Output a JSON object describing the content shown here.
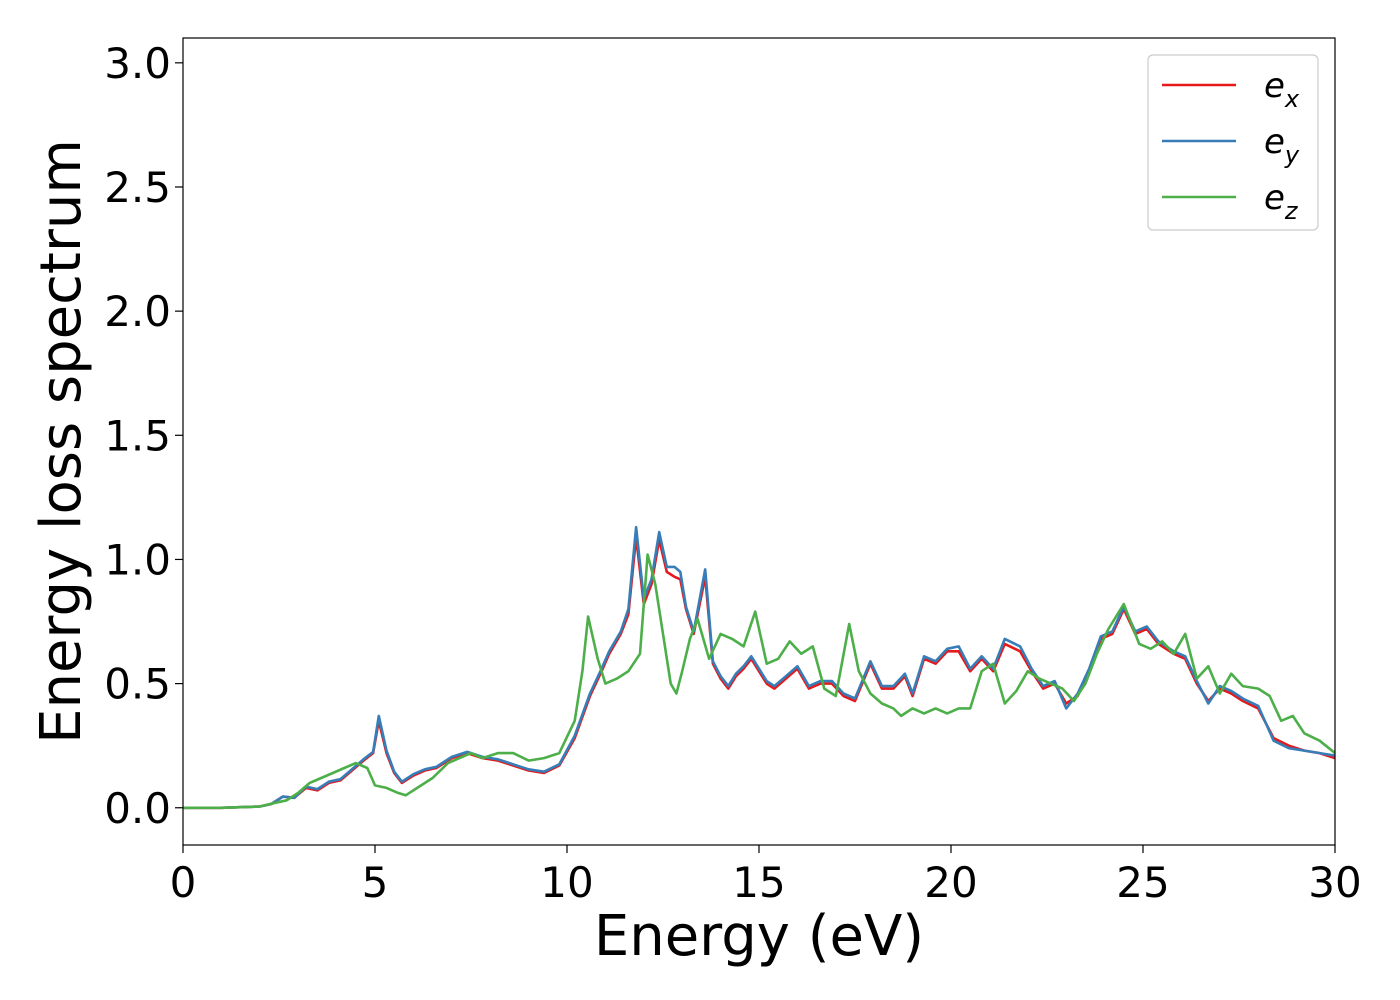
{
  "chart_data": {
    "type": "line",
    "xlabel": "Energy (eV)",
    "ylabel": "Energy loss spectrum",
    "xlim": [
      0,
      30
    ],
    "ylim": [
      -0.15,
      3.1
    ],
    "xticks": [
      0,
      5,
      10,
      15,
      20,
      25,
      30
    ],
    "yticks": [
      0.0,
      0.5,
      1.0,
      1.5,
      2.0,
      2.5,
      3.0
    ],
    "xtick_labels": [
      "0",
      "5",
      "10",
      "15",
      "20",
      "25",
      "30"
    ],
    "ytick_labels": [
      "0.0",
      "0.5",
      "1.0",
      "1.5",
      "2.0",
      "2.5",
      "3.0"
    ],
    "grid": false,
    "legend_position": "top-right",
    "series": [
      {
        "label_base": "e",
        "label_sub": "x",
        "color": "#e41a1c",
        "points": [
          [
            0,
            0
          ],
          [
            1,
            0
          ],
          [
            2,
            0.005
          ],
          [
            2.3,
            0.015
          ],
          [
            2.6,
            0.045
          ],
          [
            2.9,
            0.04
          ],
          [
            3.2,
            0.08
          ],
          [
            3.5,
            0.07
          ],
          [
            3.8,
            0.1
          ],
          [
            4.1,
            0.11
          ],
          [
            4.4,
            0.15
          ],
          [
            4.7,
            0.19
          ],
          [
            4.95,
            0.22
          ],
          [
            5.1,
            0.35
          ],
          [
            5.3,
            0.22
          ],
          [
            5.5,
            0.14
          ],
          [
            5.7,
            0.1
          ],
          [
            6.0,
            0.13
          ],
          [
            6.3,
            0.15
          ],
          [
            6.6,
            0.16
          ],
          [
            7.0,
            0.2
          ],
          [
            7.4,
            0.22
          ],
          [
            7.8,
            0.2
          ],
          [
            8.2,
            0.19
          ],
          [
            8.6,
            0.17
          ],
          [
            9.0,
            0.15
          ],
          [
            9.4,
            0.14
          ],
          [
            9.8,
            0.17
          ],
          [
            10.2,
            0.28
          ],
          [
            10.6,
            0.45
          ],
          [
            10.9,
            0.55
          ],
          [
            11.1,
            0.62
          ],
          [
            11.4,
            0.7
          ],
          [
            11.6,
            0.78
          ],
          [
            11.8,
            1.09
          ],
          [
            12.0,
            0.82
          ],
          [
            12.2,
            0.9
          ],
          [
            12.4,
            1.08
          ],
          [
            12.6,
            0.95
          ],
          [
            12.8,
            0.93
          ],
          [
            12.95,
            0.92
          ],
          [
            13.1,
            0.8
          ],
          [
            13.3,
            0.7
          ],
          [
            13.6,
            0.93
          ],
          [
            13.8,
            0.58
          ],
          [
            14.0,
            0.52
          ],
          [
            14.2,
            0.48
          ],
          [
            14.4,
            0.53
          ],
          [
            14.6,
            0.56
          ],
          [
            14.8,
            0.6
          ],
          [
            15.0,
            0.55
          ],
          [
            15.2,
            0.5
          ],
          [
            15.4,
            0.48
          ],
          [
            15.7,
            0.52
          ],
          [
            16.0,
            0.56
          ],
          [
            16.3,
            0.48
          ],
          [
            16.6,
            0.5
          ],
          [
            16.9,
            0.5
          ],
          [
            17.2,
            0.45
          ],
          [
            17.5,
            0.43
          ],
          [
            17.9,
            0.58
          ],
          [
            18.2,
            0.48
          ],
          [
            18.5,
            0.48
          ],
          [
            18.8,
            0.53
          ],
          [
            19.0,
            0.45
          ],
          [
            19.3,
            0.6
          ],
          [
            19.6,
            0.58
          ],
          [
            19.9,
            0.63
          ],
          [
            20.2,
            0.63
          ],
          [
            20.5,
            0.55
          ],
          [
            20.8,
            0.6
          ],
          [
            21.1,
            0.55
          ],
          [
            21.4,
            0.66
          ],
          [
            21.8,
            0.63
          ],
          [
            22.1,
            0.55
          ],
          [
            22.4,
            0.48
          ],
          [
            22.7,
            0.5
          ],
          [
            23.0,
            0.42
          ],
          [
            23.3,
            0.45
          ],
          [
            23.6,
            0.55
          ],
          [
            23.9,
            0.68
          ],
          [
            24.2,
            0.7
          ],
          [
            24.5,
            0.8
          ],
          [
            24.8,
            0.7
          ],
          [
            25.1,
            0.72
          ],
          [
            25.4,
            0.66
          ],
          [
            25.8,
            0.62
          ],
          [
            26.1,
            0.6
          ],
          [
            26.4,
            0.5
          ],
          [
            26.7,
            0.43
          ],
          [
            27.0,
            0.48
          ],
          [
            27.3,
            0.46
          ],
          [
            27.6,
            0.43
          ],
          [
            28.0,
            0.4
          ],
          [
            28.4,
            0.28
          ],
          [
            28.8,
            0.25
          ],
          [
            29.2,
            0.23
          ],
          [
            29.6,
            0.22
          ],
          [
            30.0,
            0.2
          ]
        ]
      },
      {
        "label_base": "e",
        "label_sub": "y",
        "color": "#377eb8",
        "points": [
          [
            0,
            0
          ],
          [
            1,
            0
          ],
          [
            2,
            0.005
          ],
          [
            2.3,
            0.015
          ],
          [
            2.6,
            0.045
          ],
          [
            2.9,
            0.04
          ],
          [
            3.2,
            0.085
          ],
          [
            3.5,
            0.075
          ],
          [
            3.8,
            0.105
          ],
          [
            4.1,
            0.115
          ],
          [
            4.4,
            0.155
          ],
          [
            4.7,
            0.195
          ],
          [
            4.95,
            0.225
          ],
          [
            5.1,
            0.37
          ],
          [
            5.3,
            0.23
          ],
          [
            5.5,
            0.145
          ],
          [
            5.7,
            0.105
          ],
          [
            6.0,
            0.135
          ],
          [
            6.3,
            0.155
          ],
          [
            6.6,
            0.165
          ],
          [
            7.0,
            0.205
          ],
          [
            7.4,
            0.225
          ],
          [
            7.8,
            0.205
          ],
          [
            8.2,
            0.195
          ],
          [
            8.6,
            0.175
          ],
          [
            9.0,
            0.155
          ],
          [
            9.4,
            0.145
          ],
          [
            9.8,
            0.175
          ],
          [
            10.2,
            0.29
          ],
          [
            10.6,
            0.46
          ],
          [
            10.9,
            0.56
          ],
          [
            11.1,
            0.63
          ],
          [
            11.4,
            0.71
          ],
          [
            11.6,
            0.8
          ],
          [
            11.8,
            1.13
          ],
          [
            12.0,
            0.84
          ],
          [
            12.2,
            0.92
          ],
          [
            12.4,
            1.11
          ],
          [
            12.6,
            0.97
          ],
          [
            12.8,
            0.97
          ],
          [
            12.95,
            0.95
          ],
          [
            13.1,
            0.81
          ],
          [
            13.3,
            0.71
          ],
          [
            13.6,
            0.96
          ],
          [
            13.8,
            0.59
          ],
          [
            14.0,
            0.53
          ],
          [
            14.2,
            0.49
          ],
          [
            14.4,
            0.54
          ],
          [
            14.6,
            0.57
          ],
          [
            14.8,
            0.61
          ],
          [
            15.0,
            0.56
          ],
          [
            15.2,
            0.51
          ],
          [
            15.4,
            0.49
          ],
          [
            15.7,
            0.53
          ],
          [
            16.0,
            0.57
          ],
          [
            16.3,
            0.49
          ],
          [
            16.6,
            0.51
          ],
          [
            16.9,
            0.51
          ],
          [
            17.2,
            0.46
          ],
          [
            17.5,
            0.44
          ],
          [
            17.9,
            0.59
          ],
          [
            18.2,
            0.49
          ],
          [
            18.5,
            0.49
          ],
          [
            18.8,
            0.54
          ],
          [
            19.0,
            0.46
          ],
          [
            19.3,
            0.61
          ],
          [
            19.6,
            0.59
          ],
          [
            19.9,
            0.64
          ],
          [
            20.2,
            0.65
          ],
          [
            20.5,
            0.56
          ],
          [
            20.8,
            0.61
          ],
          [
            21.1,
            0.56
          ],
          [
            21.4,
            0.68
          ],
          [
            21.8,
            0.65
          ],
          [
            22.1,
            0.56
          ],
          [
            22.4,
            0.49
          ],
          [
            22.7,
            0.51
          ],
          [
            23.0,
            0.4
          ],
          [
            23.3,
            0.46
          ],
          [
            23.6,
            0.56
          ],
          [
            23.9,
            0.69
          ],
          [
            24.2,
            0.71
          ],
          [
            24.5,
            0.81
          ],
          [
            24.8,
            0.71
          ],
          [
            25.1,
            0.73
          ],
          [
            25.4,
            0.67
          ],
          [
            25.8,
            0.63
          ],
          [
            26.1,
            0.61
          ],
          [
            26.4,
            0.51
          ],
          [
            26.7,
            0.42
          ],
          [
            27.0,
            0.49
          ],
          [
            27.3,
            0.47
          ],
          [
            27.6,
            0.44
          ],
          [
            28.0,
            0.41
          ],
          [
            28.4,
            0.27
          ],
          [
            28.8,
            0.24
          ],
          [
            29.2,
            0.23
          ],
          [
            29.6,
            0.22
          ],
          [
            30.0,
            0.21
          ]
        ]
      },
      {
        "label_base": "e",
        "label_sub": "z",
        "color": "#4daf4a",
        "points": [
          [
            0,
            0
          ],
          [
            1,
            0
          ],
          [
            2,
            0.005
          ],
          [
            2.4,
            0.02
          ],
          [
            2.7,
            0.03
          ],
          [
            3.0,
            0.06
          ],
          [
            3.3,
            0.1
          ],
          [
            3.6,
            0.12
          ],
          [
            3.9,
            0.14
          ],
          [
            4.2,
            0.16
          ],
          [
            4.5,
            0.18
          ],
          [
            4.8,
            0.16
          ],
          [
            5.0,
            0.09
          ],
          [
            5.3,
            0.08
          ],
          [
            5.6,
            0.06
          ],
          [
            5.8,
            0.05
          ],
          [
            6.1,
            0.08
          ],
          [
            6.5,
            0.12
          ],
          [
            6.9,
            0.18
          ],
          [
            7.2,
            0.2
          ],
          [
            7.5,
            0.22
          ],
          [
            7.8,
            0.2
          ],
          [
            8.2,
            0.22
          ],
          [
            8.6,
            0.22
          ],
          [
            9.0,
            0.19
          ],
          [
            9.4,
            0.2
          ],
          [
            9.8,
            0.22
          ],
          [
            10.2,
            0.35
          ],
          [
            10.4,
            0.55
          ],
          [
            10.55,
            0.77
          ],
          [
            10.8,
            0.6
          ],
          [
            11.0,
            0.5
          ],
          [
            11.3,
            0.52
          ],
          [
            11.6,
            0.55
          ],
          [
            11.9,
            0.62
          ],
          [
            12.1,
            1.02
          ],
          [
            12.3,
            0.9
          ],
          [
            12.5,
            0.7
          ],
          [
            12.7,
            0.5
          ],
          [
            12.85,
            0.46
          ],
          [
            13.0,
            0.55
          ],
          [
            13.2,
            0.68
          ],
          [
            13.4,
            0.76
          ],
          [
            13.7,
            0.6
          ],
          [
            14.0,
            0.7
          ],
          [
            14.3,
            0.68
          ],
          [
            14.6,
            0.65
          ],
          [
            14.9,
            0.79
          ],
          [
            15.2,
            0.58
          ],
          [
            15.5,
            0.6
          ],
          [
            15.8,
            0.67
          ],
          [
            16.1,
            0.62
          ],
          [
            16.4,
            0.65
          ],
          [
            16.7,
            0.48
          ],
          [
            17.0,
            0.45
          ],
          [
            17.35,
            0.74
          ],
          [
            17.6,
            0.55
          ],
          [
            17.9,
            0.46
          ],
          [
            18.2,
            0.42
          ],
          [
            18.5,
            0.4
          ],
          [
            18.7,
            0.37
          ],
          [
            19.0,
            0.4
          ],
          [
            19.3,
            0.38
          ],
          [
            19.6,
            0.4
          ],
          [
            19.9,
            0.38
          ],
          [
            20.2,
            0.4
          ],
          [
            20.5,
            0.4
          ],
          [
            20.8,
            0.55
          ],
          [
            21.1,
            0.58
          ],
          [
            21.4,
            0.42
          ],
          [
            21.7,
            0.47
          ],
          [
            22.0,
            0.55
          ],
          [
            22.3,
            0.52
          ],
          [
            22.6,
            0.5
          ],
          [
            22.9,
            0.48
          ],
          [
            23.2,
            0.43
          ],
          [
            23.5,
            0.5
          ],
          [
            23.8,
            0.62
          ],
          [
            24.1,
            0.72
          ],
          [
            24.5,
            0.82
          ],
          [
            24.9,
            0.66
          ],
          [
            25.2,
            0.64
          ],
          [
            25.5,
            0.67
          ],
          [
            25.8,
            0.62
          ],
          [
            26.1,
            0.7
          ],
          [
            26.4,
            0.52
          ],
          [
            26.7,
            0.57
          ],
          [
            27.0,
            0.46
          ],
          [
            27.3,
            0.54
          ],
          [
            27.6,
            0.49
          ],
          [
            28.0,
            0.48
          ],
          [
            28.3,
            0.45
          ],
          [
            28.6,
            0.35
          ],
          [
            28.9,
            0.37
          ],
          [
            29.2,
            0.3
          ],
          [
            29.6,
            0.27
          ],
          [
            30.0,
            0.22
          ]
        ]
      }
    ]
  }
}
